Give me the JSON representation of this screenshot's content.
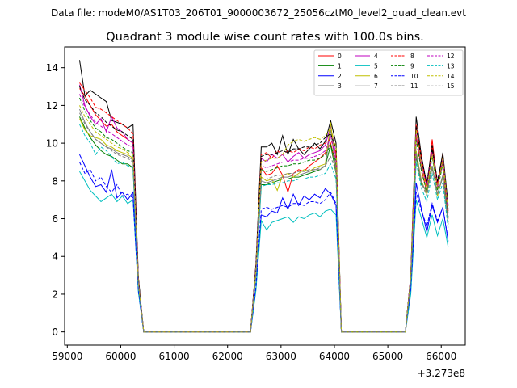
{
  "chart_data": {
    "type": "line",
    "suptitle": "Data file: modeM0/AS1T03_206T01_9000003672_25056cztM0_level2_quad_clean.evt",
    "title": "Quadrant 3 module wise count rates with 100.0s bins.",
    "xlabel": "",
    "ylabel": "",
    "x_offset_label": "+3.273e8",
    "xlim": [
      58950,
      66450
    ],
    "ylim": [
      -0.7,
      15.1
    ],
    "x_ticks": [
      59000,
      60000,
      61000,
      62000,
      63000,
      64000,
      65000,
      66000
    ],
    "x_tick_labels": [
      "59000",
      "60000",
      "61000",
      "62000",
      "63000",
      "64000",
      "65000",
      "66000"
    ],
    "y_ticks": [
      0,
      2,
      4,
      6,
      8,
      10,
      12,
      14
    ],
    "y_tick_labels": [
      "0",
      "2",
      "4",
      "6",
      "8",
      "10",
      "12",
      "14"
    ],
    "x": [
      59230,
      59330,
      59430,
      59530,
      59630,
      59730,
      59830,
      59930,
      60030,
      60130,
      60230,
      60330,
      60430,
      62430,
      62530,
      62630,
      62730,
      62830,
      62930,
      63030,
      63130,
      63230,
      63330,
      63430,
      63530,
      63630,
      63730,
      63830,
      63930,
      64030,
      64130,
      65330,
      65430,
      65530,
      65630,
      65730,
      65830,
      65930,
      66030,
      66130
    ],
    "legend": {
      "placement": "top-right",
      "columns": 4
    },
    "series": [
      {
        "name": "0",
        "color": "#ff0000",
        "dash": "solid",
        "values": [
          12.9,
          12.5,
          12.0,
          11.5,
          11.2,
          10.9,
          11.0,
          10.6,
          10.4,
          10.2,
          10.0,
          2.6,
          0.0,
          0.0,
          3.3,
          8.7,
          8.3,
          8.4,
          8.8,
          8.3,
          7.4,
          8.4,
          8.6,
          8.5,
          8.8,
          9.0,
          9.2,
          9.5,
          10.0,
          8.8,
          0.0,
          0.0,
          2.8,
          10.4,
          8.6,
          7.4,
          10.2,
          7.7,
          9.0,
          6.0
        ]
      },
      {
        "name": "1",
        "color": "#008000",
        "dash": "solid",
        "values": [
          11.4,
          10.8,
          10.3,
          9.9,
          9.6,
          9.4,
          9.3,
          9.1,
          8.9,
          8.9,
          8.7,
          2.5,
          0.0,
          0.0,
          3.0,
          7.8,
          7.8,
          7.9,
          8.0,
          8.1,
          8.1,
          8.2,
          8.2,
          8.3,
          8.4,
          8.5,
          8.6,
          8.8,
          9.9,
          8.4,
          0.0,
          0.0,
          2.8,
          9.3,
          7.8,
          7.5,
          8.7,
          7.3,
          8.2,
          5.7
        ]
      },
      {
        "name": "2",
        "color": "#0000ff",
        "dash": "solid",
        "values": [
          9.4,
          8.8,
          8.2,
          7.7,
          7.8,
          7.4,
          8.6,
          7.1,
          7.4,
          7.0,
          7.4,
          2.2,
          0.0,
          0.0,
          2.3,
          6.2,
          6.1,
          6.4,
          6.3,
          7.1,
          6.5,
          7.3,
          6.7,
          7.2,
          7.0,
          7.3,
          7.1,
          7.6,
          7.3,
          6.7,
          0.0,
          0.0,
          2.3,
          7.9,
          6.5,
          5.3,
          6.7,
          5.8,
          6.6,
          4.8
        ]
      },
      {
        "name": "3",
        "color": "#000000",
        "dash": "solid",
        "values": [
          14.4,
          12.5,
          12.8,
          12.6,
          12.4,
          12.2,
          11.2,
          11.1,
          11.0,
          10.8,
          11.0,
          2.9,
          0.0,
          0.0,
          3.6,
          9.8,
          9.8,
          10.0,
          9.4,
          10.4,
          9.4,
          10.2,
          9.7,
          9.4,
          9.7,
          10.0,
          9.7,
          10.1,
          11.2,
          10.0,
          0.0,
          0.0,
          3.0,
          11.4,
          9.3,
          7.8,
          9.9,
          7.9,
          9.5,
          6.7
        ]
      },
      {
        "name": "4",
        "color": "#bf00bf",
        "dash": "solid",
        "values": [
          13.1,
          12.0,
          11.4,
          11.0,
          11.3,
          10.6,
          11.4,
          10.8,
          10.6,
          10.2,
          10.0,
          2.7,
          0.0,
          0.0,
          3.4,
          9.2,
          9.0,
          9.4,
          9.2,
          9.4,
          9.0,
          9.3,
          9.5,
          9.2,
          9.4,
          9.5,
          9.6,
          9.9,
          10.9,
          9.3,
          0.0,
          0.0,
          2.9,
          10.8,
          8.9,
          7.7,
          9.6,
          7.6,
          9.3,
          6.4
        ]
      },
      {
        "name": "5",
        "color": "#00bfbf",
        "dash": "solid",
        "values": [
          8.5,
          8.0,
          7.5,
          7.2,
          6.9,
          7.1,
          7.3,
          6.9,
          7.2,
          6.8,
          7.0,
          2.1,
          0.0,
          0.0,
          2.2,
          5.9,
          5.4,
          5.8,
          5.9,
          6.0,
          6.1,
          5.8,
          6.1,
          6.0,
          6.2,
          6.3,
          6.1,
          6.4,
          6.5,
          6.2,
          0.0,
          0.0,
          2.0,
          7.0,
          6.0,
          5.0,
          6.2,
          5.1,
          6.0,
          4.5
        ]
      },
      {
        "name": "6",
        "color": "#bfbf00",
        "dash": "solid",
        "values": [
          11.3,
          10.7,
          10.4,
          10.3,
          10.2,
          9.9,
          9.8,
          9.6,
          9.5,
          9.4,
          9.2,
          2.6,
          0.0,
          0.0,
          3.1,
          8.2,
          8.0,
          8.1,
          7.5,
          8.3,
          8.4,
          8.2,
          8.4,
          8.6,
          8.5,
          8.7,
          8.8,
          8.9,
          11.1,
          8.5,
          0.0,
          0.0,
          2.8,
          9.6,
          8.0,
          7.3,
          8.8,
          7.2,
          8.3,
          5.8
        ]
      },
      {
        "name": "7",
        "color": "#7f7f7f",
        "dash": "solid",
        "values": [
          11.8,
          11.1,
          10.6,
          10.2,
          10.0,
          9.8,
          9.7,
          9.5,
          9.4,
          9.3,
          9.1,
          2.6,
          0.0,
          0.0,
          3.1,
          8.0,
          7.9,
          8.0,
          8.1,
          8.2,
          8.2,
          8.3,
          8.3,
          8.4,
          8.5,
          8.6,
          8.6,
          8.8,
          10.7,
          8.6,
          0.0,
          0.0,
          2.8,
          9.5,
          7.9,
          7.4,
          8.8,
          7.3,
          8.3,
          5.8
        ]
      },
      {
        "name": "8",
        "color": "#ff0000",
        "dash": "dashed",
        "values": [
          13.2,
          12.8,
          12.4,
          11.9,
          11.8,
          11.6,
          11.4,
          11.2,
          11.0,
          10.8,
          10.5,
          2.8,
          0.0,
          0.0,
          3.5,
          9.4,
          9.5,
          9.2,
          9.6,
          9.4,
          9.6,
          9.5,
          9.7,
          9.6,
          9.8,
          9.7,
          9.9,
          10.0,
          10.2,
          9.5,
          0.0,
          0.0,
          3.0,
          11.0,
          9.2,
          7.6,
          9.8,
          7.8,
          9.4,
          6.5
        ]
      },
      {
        "name": "9",
        "color": "#008000",
        "dash": "dashed",
        "values": [
          12.4,
          11.7,
          11.2,
          10.8,
          10.6,
          10.3,
          10.2,
          10.0,
          9.8,
          9.6,
          9.5,
          2.7,
          0.0,
          0.0,
          3.3,
          8.6,
          8.5,
          8.6,
          8.7,
          8.8,
          8.8,
          8.9,
          8.9,
          9.0,
          9.1,
          9.1,
          9.2,
          9.4,
          9.9,
          9.0,
          0.0,
          0.0,
          2.9,
          10.2,
          8.5,
          7.4,
          9.3,
          7.5,
          8.9,
          6.1
        ]
      },
      {
        "name": "10",
        "color": "#0000ff",
        "dash": "dashed",
        "values": [
          9.0,
          8.4,
          8.6,
          8.0,
          8.2,
          7.7,
          7.4,
          7.8,
          7.2,
          7.3,
          7.1,
          2.2,
          0.0,
          0.0,
          2.4,
          6.5,
          6.6,
          6.5,
          6.6,
          6.7,
          6.6,
          6.8,
          6.8,
          6.7,
          6.9,
          6.9,
          6.8,
          7.0,
          7.4,
          6.8,
          0.0,
          0.0,
          2.3,
          7.4,
          6.4,
          5.6,
          6.8,
          5.9,
          6.6,
          4.9
        ]
      },
      {
        "name": "11",
        "color": "#000000",
        "dash": "dashed",
        "values": [
          13.0,
          12.3,
          12.0,
          11.6,
          11.4,
          11.1,
          10.9,
          10.7,
          10.6,
          10.4,
          10.2,
          2.8,
          0.0,
          0.0,
          3.5,
          9.3,
          9.4,
          9.4,
          9.5,
          9.6,
          9.5,
          9.7,
          9.7,
          9.8,
          9.8,
          9.9,
          10.0,
          10.3,
          10.5,
          9.7,
          0.0,
          0.0,
          3.0,
          10.9,
          9.1,
          7.9,
          9.7,
          8.0,
          9.4,
          6.6
        ]
      },
      {
        "name": "12",
        "color": "#bf00bf",
        "dash": "dashed",
        "values": [
          12.6,
          11.9,
          11.5,
          11.1,
          10.9,
          10.7,
          10.5,
          10.3,
          10.1,
          9.9,
          9.8,
          2.7,
          0.0,
          0.0,
          3.4,
          8.8,
          8.7,
          8.8,
          8.9,
          9.0,
          9.0,
          9.1,
          9.1,
          9.2,
          9.2,
          9.3,
          9.4,
          9.6,
          10.4,
          9.1,
          0.0,
          0.0,
          2.9,
          10.5,
          8.7,
          7.6,
          9.5,
          7.7,
          9.1,
          6.3
        ]
      },
      {
        "name": "13",
        "color": "#00bfbf",
        "dash": "dashed",
        "values": [
          11.0,
          10.4,
          10.0,
          9.4,
          9.8,
          9.6,
          9.3,
          8.9,
          9.0,
          8.8,
          8.7,
          2.5,
          0.0,
          0.0,
          3.0,
          7.7,
          7.8,
          7.8,
          7.9,
          7.9,
          8.0,
          8.0,
          8.1,
          8.1,
          8.2,
          8.2,
          8.3,
          8.4,
          8.9,
          8.1,
          0.0,
          0.0,
          2.7,
          9.0,
          7.6,
          6.9,
          8.4,
          7.0,
          7.9,
          5.5
        ]
      },
      {
        "name": "14",
        "color": "#bfbf00",
        "dash": "dashed",
        "values": [
          12.0,
          11.4,
          11.0,
          10.6,
          10.4,
          10.2,
          10.0,
          9.8,
          9.7,
          9.5,
          9.4,
          2.6,
          0.0,
          0.0,
          3.3,
          9.0,
          9.1,
          9.2,
          9.2,
          9.4,
          9.9,
          10.1,
          10.2,
          10.1,
          10.2,
          10.3,
          10.2,
          10.4,
          10.8,
          9.8,
          0.0,
          0.0,
          2.9,
          10.7,
          8.8,
          7.5,
          9.4,
          7.6,
          9.2,
          6.4
        ]
      },
      {
        "name": "15",
        "color": "#7f7f7f",
        "dash": "dashed",
        "values": [
          11.6,
          11.0,
          10.6,
          10.2,
          10.0,
          9.8,
          9.6,
          9.4,
          9.3,
          9.2,
          9.0,
          2.6,
          0.0,
          0.0,
          3.1,
          8.1,
          8.1,
          8.2,
          8.3,
          8.3,
          8.4,
          8.4,
          8.5,
          8.5,
          8.6,
          8.6,
          8.7,
          8.8,
          9.3,
          8.5,
          0.0,
          0.0,
          2.8,
          9.4,
          7.9,
          7.2,
          8.7,
          7.3,
          8.2,
          5.8
        ]
      }
    ]
  }
}
